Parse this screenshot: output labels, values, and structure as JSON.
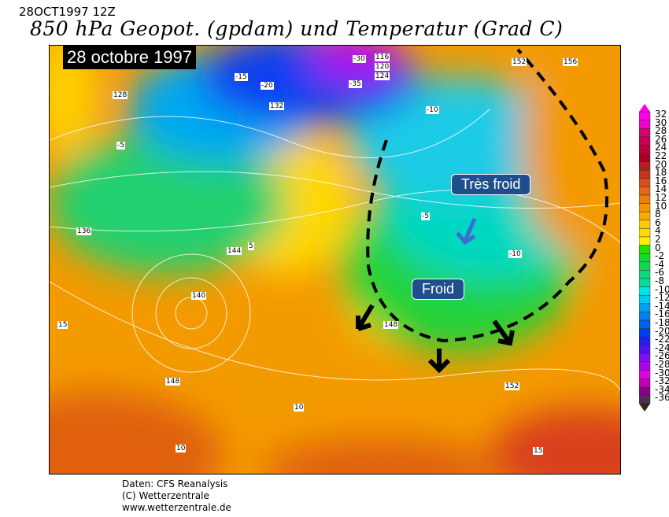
{
  "header": {
    "run": "28OCT1997 12Z",
    "title": "850 hPa Geopot. (gpdam) und  Temperatur (Grad C)"
  },
  "map": {
    "date_label": "28 octobre 1997",
    "annotations": [
      {
        "text": "Très froid"
      },
      {
        "text": "Froid"
      }
    ],
    "contour_labels": [
      {
        "text": "-30"
      },
      {
        "text": "116"
      },
      {
        "text": "120"
      },
      {
        "text": "124"
      },
      {
        "text": "-35"
      },
      {
        "text": "-20"
      },
      {
        "text": "-15"
      },
      {
        "text": "-10"
      },
      {
        "text": "-5"
      },
      {
        "text": "128"
      },
      {
        "text": "132"
      },
      {
        "text": "136"
      },
      {
        "text": "140"
      },
      {
        "text": "144"
      },
      {
        "text": "148"
      },
      {
        "text": "152"
      },
      {
        "text": "156"
      },
      {
        "text": "5"
      },
      {
        "text": "10"
      },
      {
        "text": "15"
      },
      {
        "text": "-5"
      },
      {
        "text": "-10"
      },
      {
        "text": "152"
      },
      {
        "text": "148"
      },
      {
        "text": "10"
      },
      {
        "text": "15"
      }
    ],
    "colors": {
      "warm": "#f39a00",
      "hot": "#d8401a",
      "yellow": "#ffe000",
      "green": "#22d23a",
      "cyan": "#1ecbe6",
      "blue": "#1060f0",
      "purple": "#8a10e0",
      "front_line": "#000000",
      "annotation_bg": "#1e4f8c"
    }
  },
  "legend": {
    "unit": "Grad C",
    "levels": [
      "32",
      "30",
      "28",
      "26",
      "24",
      "22",
      "20",
      "18",
      "16",
      "14",
      "12",
      "10",
      "8",
      "6",
      "4",
      "2",
      "0",
      "-2",
      "-4",
      "-6",
      "-8",
      "-10",
      "-12",
      "-14",
      "-16",
      "-18",
      "-20",
      "-22",
      "-24",
      "-26",
      "-28",
      "-30",
      "-32",
      "-34",
      "-36"
    ],
    "colors": [
      "#ff00e6",
      "#f000c8",
      "#d8006e",
      "#c80050",
      "#b8003c",
      "#a80020",
      "#b41e1e",
      "#c8321e",
      "#dc4a1e",
      "#e66414",
      "#e8800a",
      "#f09600",
      "#f8aa00",
      "#ffc800",
      "#ffdc00",
      "#fff000",
      "#22e000",
      "#18d832",
      "#10d850",
      "#10d878",
      "#00e0a0",
      "#00e6e6",
      "#00c8f0",
      "#00a0f0",
      "#0080f0",
      "#0060f0",
      "#0040f0",
      "#2020f0",
      "#5010f0",
      "#8010f0",
      "#b000f0",
      "#e000e6",
      "#c000b4",
      "#880088",
      "#503050"
    ]
  },
  "footer": {
    "line1": "Daten: CFS Reanalysis",
    "line2": "(C) Wetterzentrale",
    "line3": "www.wetterzentrale.de"
  }
}
